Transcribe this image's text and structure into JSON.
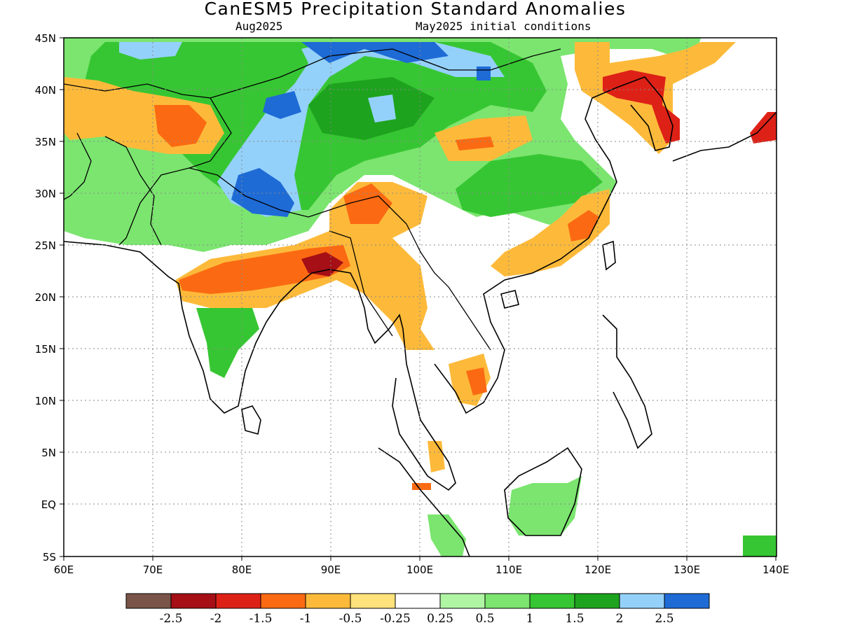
{
  "title": "CanESM5 Precipitation Standard Anomalies",
  "subtitle_left": "Aug2025",
  "subtitle_right": "May2025 initial conditions",
  "map": {
    "lon_range": [
      60,
      140
    ],
    "lat_range": [
      -5,
      45
    ],
    "grid": "dotted",
    "lon_ticks": [
      "60E",
      "70E",
      "80E",
      "90E",
      "100E",
      "110E",
      "120E",
      "130E",
      "140E"
    ],
    "lat_ticks": [
      "45N",
      "40N",
      "35N",
      "30N",
      "25N",
      "20N",
      "15N",
      "10N",
      "5N",
      "EQ",
      "5S"
    ]
  },
  "colorbar": {
    "colors": [
      "#7a5448",
      "#a50f15",
      "#de2117",
      "#fb6a13",
      "#fdba3a",
      "#ffe27b",
      "#ffffff",
      "#b0f5a3",
      "#7be56f",
      "#37c633",
      "#1ea31e",
      "#94d1fa",
      "#1e6bd6"
    ],
    "labels": [
      "-2.5",
      "-2",
      "-1.5",
      "-1",
      "-0.5",
      "-0.25",
      "0.25",
      "0.5",
      "1",
      "1.5",
      "2",
      "2.5"
    ]
  },
  "icons": {
    "coastline": "coastline-outline",
    "borders": "country-border-lines"
  }
}
